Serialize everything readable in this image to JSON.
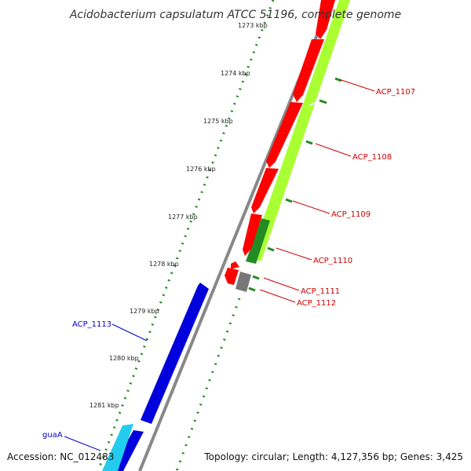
{
  "title": "Acidobacterium capsulatum ATCC 51196, complete genome",
  "footer": {
    "accession": "Accession: NC_012483",
    "summary": "Topology: circular; Length: 4,127,356 bp; Genes: 3,425"
  },
  "ticks": [
    "1273 kbp",
    "1274 kbp",
    "1275 kbp",
    "1276 kbp",
    "1277 kbp",
    "1278 kbp",
    "1279 kbp",
    "1280 kbp",
    "1281 kbp"
  ],
  "gene_labels": [
    {
      "id": "ACP_1107",
      "text": "ACP_1107",
      "strand": "forward"
    },
    {
      "id": "ACP_1108",
      "text": "ACP_1108",
      "strand": "forward"
    },
    {
      "id": "ACP_1109",
      "text": "ACP_1109",
      "strand": "forward"
    },
    {
      "id": "ACP_1110",
      "text": "ACP_1110",
      "strand": "forward"
    },
    {
      "id": "ACP_1111",
      "text": "ACP_1111",
      "strand": "forward"
    },
    {
      "id": "ACP_1112",
      "text": "ACP_1112",
      "strand": "forward"
    },
    {
      "id": "ACP_1113",
      "text": "ACP_1113",
      "strand": "reverse"
    },
    {
      "id": "guaA",
      "text": "guaA",
      "strand": "reverse"
    }
  ],
  "colors": {
    "forward_cds": "#ff0000",
    "forward_gene": "#aaff33",
    "forward_dark": "#228b22",
    "reverse_cds": "#0000dd",
    "reverse_gene": "#22ccee",
    "backbone": "#888888",
    "tick": "#228b22",
    "forward_label": "#cc0000",
    "reverse_label": "#0000cc",
    "other": "#777777"
  }
}
